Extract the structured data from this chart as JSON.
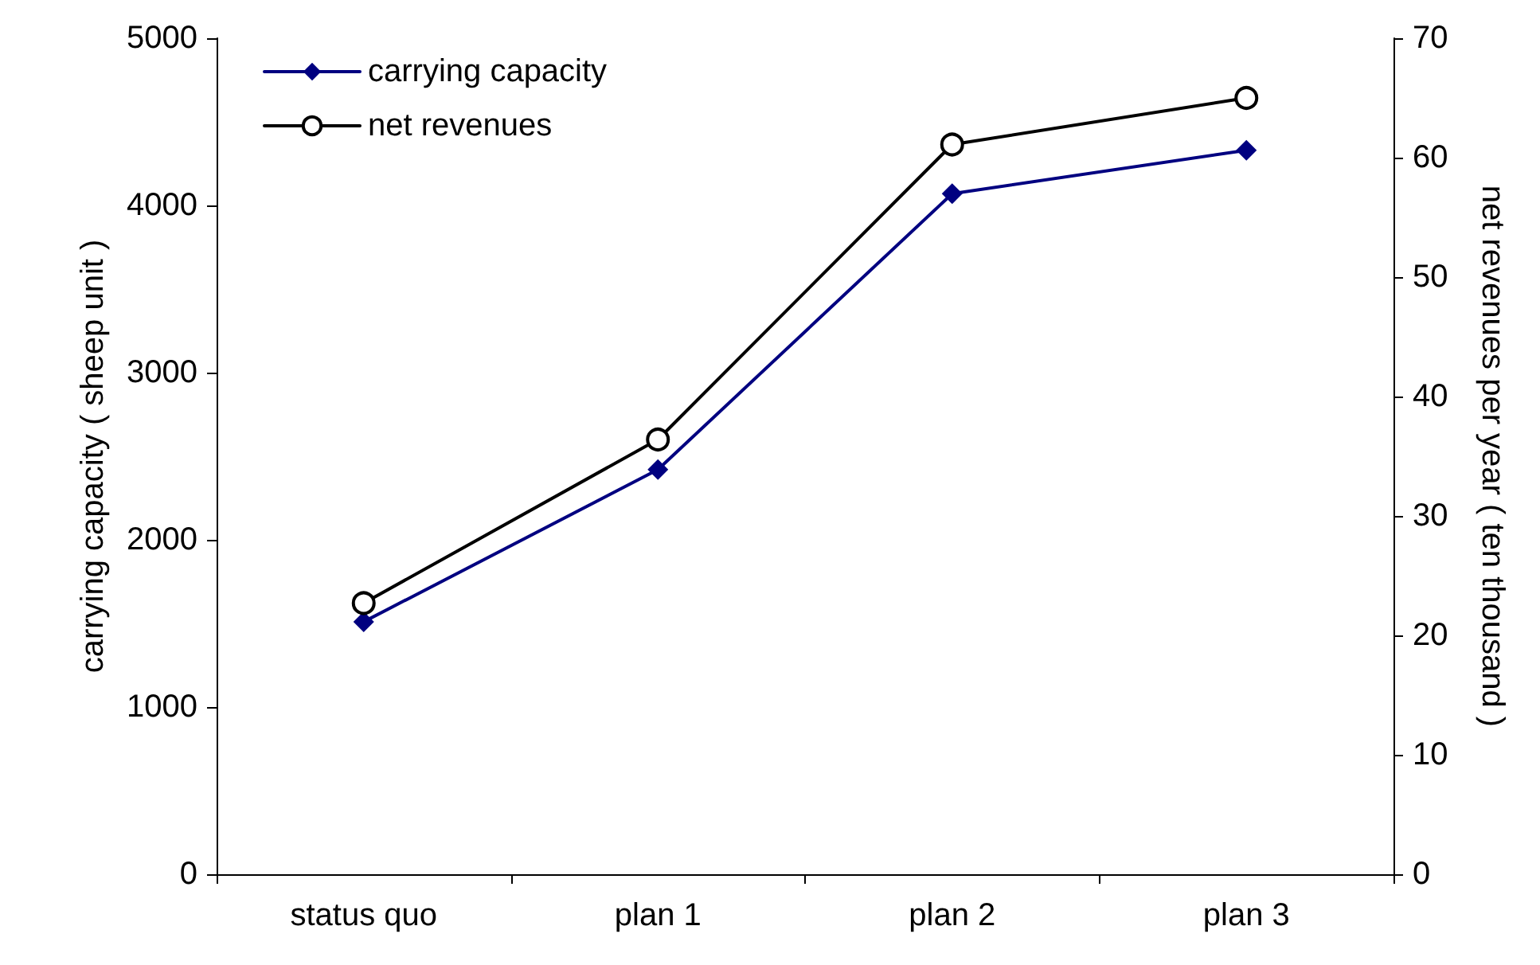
{
  "chart_data": {
    "type": "line",
    "ylabel": "carrying capacity ( sheep unit )",
    "y2label": "net revenues per year ( ten thousand )",
    "categories": [
      "status quo",
      "plan 1",
      "plan 2",
      "plan 3"
    ],
    "series": [
      {
        "name": "carrying capacity",
        "color": "#000080",
        "marker": "diamond",
        "values": [
          1510,
          2420,
          4070,
          4330
        ]
      },
      {
        "name": "net revenues",
        "color": "#000000",
        "marker": "circle",
        "axis": "y2",
        "values": [
          22.7,
          36.4,
          61.1,
          65
        ]
      }
    ],
    "ylim": [
      0,
      5000
    ],
    "yticks": [
      0,
      1000,
      2000,
      3000,
      4000,
      5000
    ],
    "y2lim": [
      0,
      70
    ],
    "y2ticks": [
      0,
      10,
      20,
      30,
      40,
      50,
      60,
      70
    ],
    "grid": false,
    "legend": "top left"
  }
}
